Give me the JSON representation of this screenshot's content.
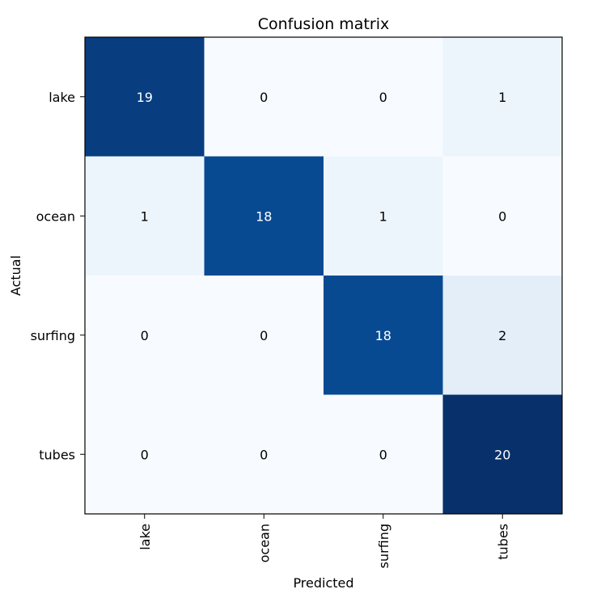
{
  "chart_data": {
    "type": "heatmap",
    "title": "Confusion matrix",
    "xlabel": "Predicted",
    "ylabel": "Actual",
    "x_categories": [
      "lake",
      "ocean",
      "surfing",
      "tubes"
    ],
    "y_categories": [
      "lake",
      "ocean",
      "surfing",
      "tubes"
    ],
    "values": [
      [
        19,
        0,
        0,
        1
      ],
      [
        1,
        18,
        1,
        0
      ],
      [
        0,
        0,
        18,
        2
      ],
      [
        0,
        0,
        0,
        20
      ]
    ],
    "value_range": [
      0,
      20
    ],
    "colormap": "Blues",
    "colors": {
      "low": "#f7fbff",
      "high": "#08306b",
      "text_dark": "#000000",
      "text_light": "#ffffff"
    },
    "grid": false,
    "legend": "none"
  }
}
